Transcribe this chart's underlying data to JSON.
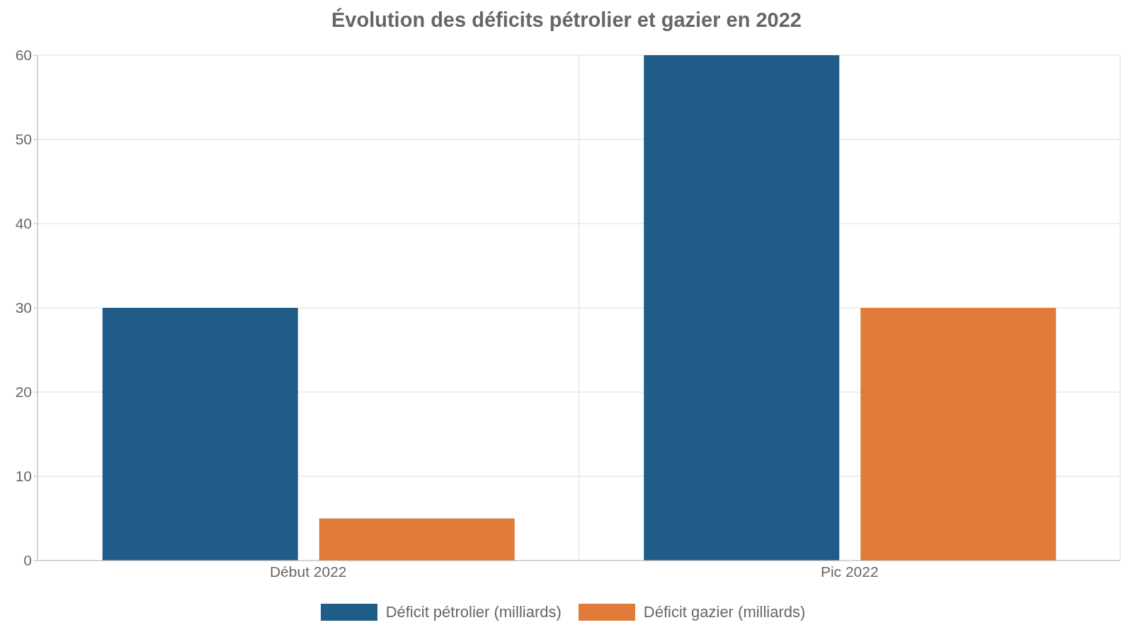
{
  "chart_data": {
    "type": "bar",
    "title": "Évolution des déficits pétrolier et gazier en 2022",
    "categories": [
      "Début 2022",
      "Pic 2022"
    ],
    "series": [
      {
        "name": "Déficit pétrolier (milliards)",
        "color": "#1f5c87",
        "values": [
          30,
          60
        ]
      },
      {
        "name": "Déficit gazier (milliards)",
        "color": "#e07b39",
        "values": [
          5,
          30
        ]
      }
    ],
    "ylim": [
      0,
      60
    ],
    "yticks": [
      0,
      10,
      20,
      30,
      40,
      50,
      60
    ],
    "grid": true,
    "legend": "bottom"
  }
}
